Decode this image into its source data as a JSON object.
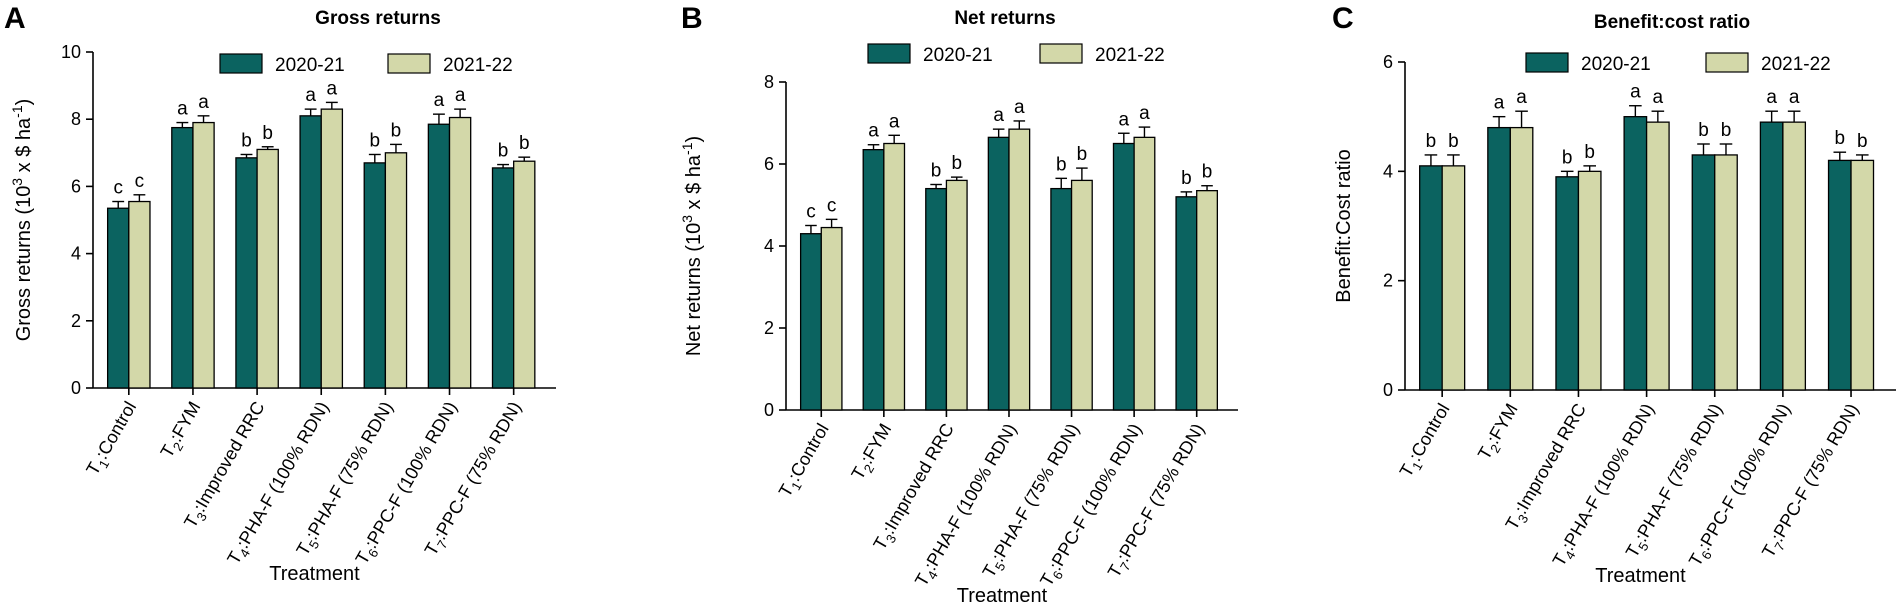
{
  "colors": {
    "series1": "#0b6360",
    "series2": "#d3d8a9"
  },
  "chart_data": [
    {
      "panel": "A",
      "type": "bar",
      "title": "Gross returns",
      "ylabel_main": "Gross returns (10",
      "ylabel_sup1": "3",
      "ylabel_mid": " x $ ha",
      "ylabel_sup2": "-1",
      "ylabel_end": ")",
      "xlabel": "Treatment",
      "ylim": [
        0,
        10
      ],
      "yticks": [
        "0",
        "2",
        "4",
        "6",
        "8",
        "10"
      ],
      "categories": [
        {
          "prefix": "T",
          "sub": "1",
          "rest": ":Control"
        },
        {
          "prefix": "T",
          "sub": "2",
          "rest": ":FYM"
        },
        {
          "prefix": "T",
          "sub": "3",
          "rest": ":Improved RRC"
        },
        {
          "prefix": "T",
          "sub": "4",
          "rest": ":PHA-F (100% RDN)"
        },
        {
          "prefix": "T",
          "sub": "5",
          "rest": ":PHA-F (75% RDN)"
        },
        {
          "prefix": "T",
          "sub": "6",
          "rest": ":PPC-F (100% RDN)"
        },
        {
          "prefix": "T",
          "sub": "7",
          "rest": ":PPC-F (75% RDN)"
        }
      ],
      "series": [
        {
          "name": "2020-21",
          "values": [
            5.35,
            7.75,
            6.85,
            8.1,
            6.7,
            7.85,
            6.55
          ],
          "errors": [
            0.2,
            0.15,
            0.1,
            0.2,
            0.25,
            0.3,
            0.1
          ],
          "labels": [
            "c",
            "a",
            "b",
            "a",
            "b",
            "a",
            "b"
          ]
        },
        {
          "name": "2021-22",
          "values": [
            5.55,
            7.9,
            7.1,
            8.3,
            7.0,
            8.05,
            6.75
          ],
          "errors": [
            0.2,
            0.2,
            0.08,
            0.2,
            0.25,
            0.25,
            0.12
          ],
          "labels": [
            "c",
            "a",
            "b",
            "a",
            "b",
            "a",
            "b"
          ]
        }
      ]
    },
    {
      "panel": "B",
      "type": "bar",
      "title": "Net returns",
      "ylabel_main": "Net returns (10",
      "ylabel_sup1": "3",
      "ylabel_mid": " x $ ha",
      "ylabel_sup2": "-1",
      "ylabel_end": ")",
      "xlabel": "Treatment",
      "ylim": [
        0,
        8
      ],
      "yticks": [
        "0",
        "2",
        "4",
        "6",
        "8"
      ],
      "categories": [
        {
          "prefix": "T",
          "sub": "1",
          "rest": ":Control"
        },
        {
          "prefix": "T",
          "sub": "2",
          "rest": ":FYM"
        },
        {
          "prefix": "T",
          "sub": "3",
          "rest": ":Improved RRC"
        },
        {
          "prefix": "T",
          "sub": "4",
          "rest": ":PHA-F (100% RDN)"
        },
        {
          "prefix": "T",
          "sub": "5",
          "rest": ":PHA-F (75% RDN)"
        },
        {
          "prefix": "T",
          "sub": "6",
          "rest": ":PPC-F (100% RDN)"
        },
        {
          "prefix": "T",
          "sub": "7",
          "rest": ":PPC-F (75% RDN)"
        }
      ],
      "series": [
        {
          "name": "2020-21",
          "values": [
            4.3,
            6.35,
            5.4,
            6.65,
            5.4,
            6.5,
            5.2
          ],
          "errors": [
            0.2,
            0.12,
            0.1,
            0.2,
            0.25,
            0.25,
            0.12
          ],
          "labels": [
            "c",
            "a",
            "b",
            "a",
            "b",
            "a",
            "b"
          ]
        },
        {
          "name": "2021-22",
          "values": [
            4.45,
            6.5,
            5.6,
            6.85,
            5.6,
            6.65,
            5.35
          ],
          "errors": [
            0.2,
            0.2,
            0.08,
            0.2,
            0.3,
            0.25,
            0.12
          ],
          "labels": [
            "c",
            "a",
            "b",
            "a",
            "b",
            "a",
            "b"
          ]
        }
      ]
    },
    {
      "panel": "C",
      "type": "bar",
      "title": "Benefit:cost ratio",
      "ylabel_main": "Benefit:Cost ratio",
      "ylabel_sup1": "",
      "ylabel_mid": "",
      "ylabel_sup2": "",
      "ylabel_end": "",
      "xlabel": "Treatment",
      "ylim": [
        0,
        6
      ],
      "yticks": [
        "0",
        "2",
        "4",
        "6"
      ],
      "categories": [
        {
          "prefix": "T",
          "sub": "1",
          "rest": ":Control"
        },
        {
          "prefix": "T",
          "sub": "2",
          "rest": ":FYM"
        },
        {
          "prefix": "T",
          "sub": "3",
          "rest": ":Improved RRC"
        },
        {
          "prefix": "T",
          "sub": "4",
          "rest": ":PHA-F (100% RDN)"
        },
        {
          "prefix": "T",
          "sub": "5",
          "rest": ":PHA-F (75% RDN)"
        },
        {
          "prefix": "T",
          "sub": "6",
          "rest": ":PPC-F (100% RDN)"
        },
        {
          "prefix": "T",
          "sub": "7",
          "rest": ":PPC-F (75% RDN)"
        }
      ],
      "series": [
        {
          "name": "2020-21",
          "values": [
            4.1,
            4.8,
            3.9,
            5.0,
            4.3,
            4.9,
            4.2
          ],
          "errors": [
            0.2,
            0.2,
            0.1,
            0.2,
            0.2,
            0.2,
            0.15
          ],
          "labels": [
            "b",
            "a",
            "b",
            "a",
            "b",
            "a",
            "b"
          ]
        },
        {
          "name": "2021-22",
          "values": [
            4.1,
            4.8,
            4.0,
            4.9,
            4.3,
            4.9,
            4.2
          ],
          "errors": [
            0.2,
            0.3,
            0.1,
            0.2,
            0.2,
            0.2,
            0.1
          ],
          "labels": [
            "b",
            "a",
            "b",
            "a",
            "b",
            "a",
            "b"
          ]
        }
      ]
    }
  ]
}
